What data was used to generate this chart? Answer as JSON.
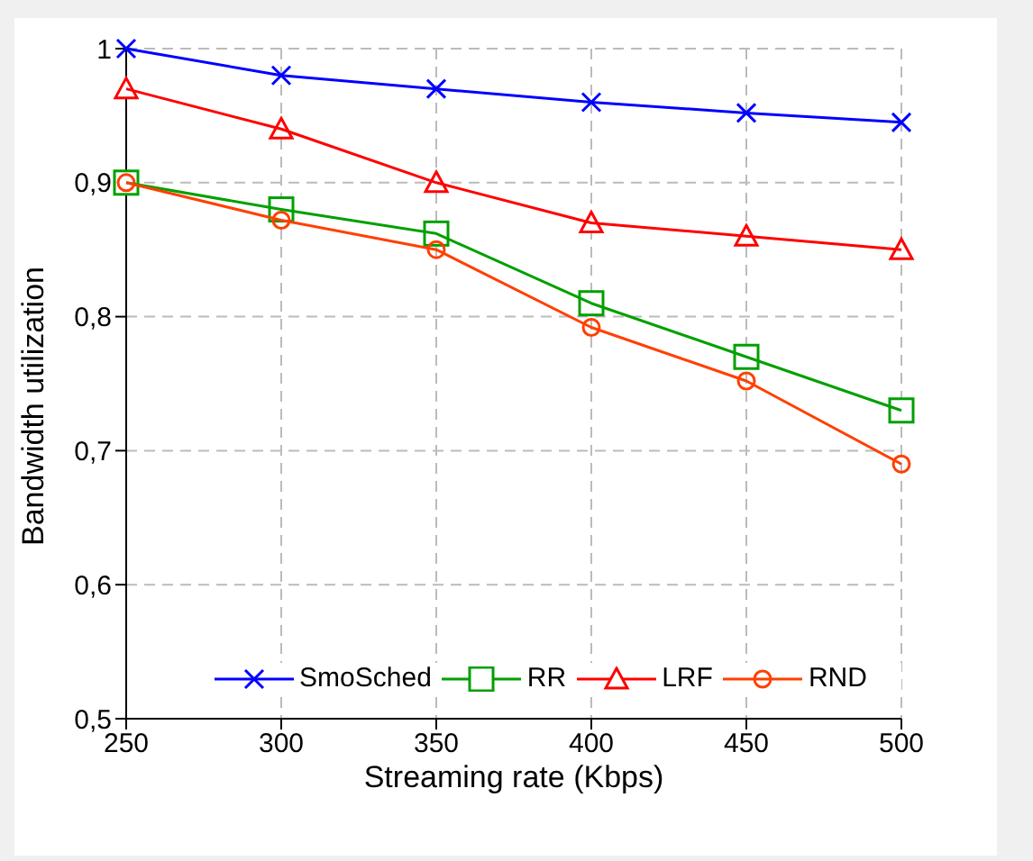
{
  "chart_data": {
    "type": "line",
    "xlabel": "Streaming rate (Kbps)",
    "ylabel": "Bandwidth utilization",
    "x": [
      250,
      300,
      350,
      400,
      450,
      500
    ],
    "series": [
      {
        "name": "SmoSched",
        "color": "#0000ff",
        "marker": "cross",
        "values": [
          1,
          0.98,
          0.97,
          0.96,
          0.952,
          0.945
        ]
      },
      {
        "name": "RR",
        "color": "#00a000",
        "marker": "square",
        "values": [
          0.9,
          0.88,
          0.862,
          0.81,
          0.77,
          0.73
        ]
      },
      {
        "name": "LRF",
        "color": "#ff0000",
        "marker": "triangle",
        "values": [
          0.97,
          0.94,
          0.9,
          0.87,
          0.86,
          0.85
        ]
      },
      {
        "name": "RND",
        "color": "#ff4000",
        "marker": "circle",
        "values": [
          0.9,
          0.872,
          0.85,
          0.792,
          0.752,
          0.69
        ]
      }
    ],
    "xlim": [
      250,
      500
    ],
    "xticks": [
      250,
      300,
      350,
      400,
      450,
      500
    ],
    "ylim": [
      0.5,
      1
    ],
    "yticks": [
      {
        "value": 0.5,
        "label": "0,5"
      },
      {
        "value": 0.6,
        "label": "0,6"
      },
      {
        "value": 0.7,
        "label": "0,7"
      },
      {
        "value": 0.8,
        "label": "0,8"
      },
      {
        "value": 0.9,
        "label": "0,9"
      },
      1
    ],
    "grid": true,
    "legend": "bottom",
    "line_style": "solid"
  }
}
